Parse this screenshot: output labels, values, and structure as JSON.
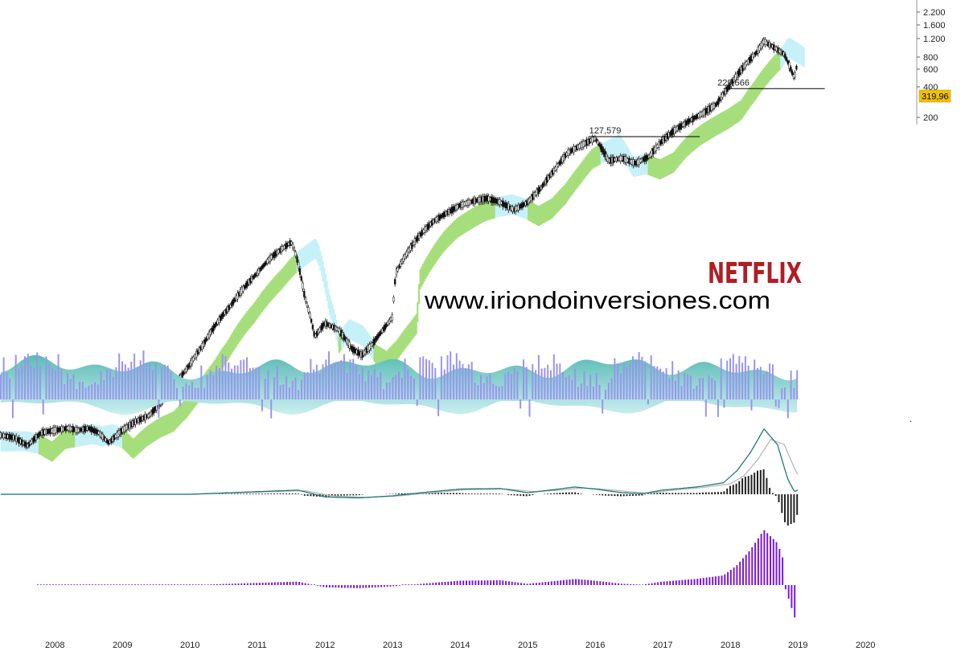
{
  "chart_data": {
    "type": "line",
    "title": "",
    "panels": [
      {
        "name": "price",
        "scale": "log",
        "ylim": [
          150,
          2600
        ],
        "yticks": [
          "2.200",
          "1.600",
          "1.200",
          "800",
          "600",
          "400",
          "200"
        ],
        "ytick_values": [
          2200,
          1600,
          1200,
          800,
          600,
          400,
          200
        ]
      },
      {
        "name": "oscillator-1"
      },
      {
        "name": "macd"
      },
      {
        "name": "histogram"
      }
    ],
    "x_labels": [
      "2008",
      "2009",
      "2010",
      "2011",
      "2012",
      "2013",
      "2014",
      "2015",
      "2016",
      "2017",
      "2018",
      "2019",
      "2020"
    ],
    "x_values": [
      2008,
      2009,
      2010,
      2011,
      2012,
      2013,
      2014,
      2015,
      2016,
      2017,
      2018,
      2019,
      2020
    ],
    "xlim": [
      2007.2,
      2020.4
    ],
    "price_series": {
      "x": [
        2007.2,
        2007.4,
        2007.6,
        2007.8,
        2008.0,
        2008.2,
        2008.35,
        2008.5,
        2008.65,
        2008.8,
        2009.0,
        2009.2,
        2009.4,
        2009.6,
        2009.8,
        2010.0,
        2010.2,
        2010.4,
        2010.6,
        2010.8,
        2011.0,
        2011.2,
        2011.4,
        2011.5,
        2011.55,
        2011.7,
        2011.85,
        2012.0,
        2012.2,
        2012.4,
        2012.55,
        2012.7,
        2012.9,
        2013.0,
        2013.05,
        2013.2,
        2013.4,
        2013.6,
        2013.8,
        2014.0,
        2014.2,
        2014.4,
        2014.6,
        2014.8,
        2015.0,
        2015.2,
        2015.4,
        2015.6,
        2015.8,
        2016.0,
        2016.2,
        2016.4,
        2016.6,
        2016.8,
        2017.0,
        2017.2,
        2017.4,
        2017.6,
        2017.8,
        2018.0,
        2018.2,
        2018.4,
        2018.5,
        2018.6,
        2018.8,
        2018.95,
        2019.0
      ],
      "y": [
        3.3,
        3.2,
        2.9,
        3.4,
        3.5,
        3.6,
        3.5,
        3.6,
        3.4,
        3.0,
        3.5,
        3.9,
        4.2,
        5.0,
        6.2,
        7.8,
        10.0,
        13.0,
        16.0,
        20.0,
        24.0,
        29.0,
        33.0,
        35.0,
        32.0,
        18.0,
        11.0,
        13.0,
        12.0,
        9.5,
        8.8,
        10.0,
        12.5,
        14.0,
        24.0,
        30.0,
        38.0,
        45.0,
        50.0,
        55.0,
        58.0,
        60.0,
        57.0,
        52.0,
        57.0,
        68.0,
        85.0,
        105.0,
        115.0,
        125.0,
        95.0,
        98.0,
        92.0,
        100.0,
        122.0,
        140.0,
        155.0,
        170.0,
        190.0,
        240.0,
        300.0,
        360.0,
        410.0,
        390.0,
        350.0,
        260.0,
        319.96
      ]
    },
    "last_price": "319,96",
    "annotations": [
      {
        "text": "229,566",
        "x": 2018.05,
        "y": 229.566
      },
      {
        "text": "127,579",
        "x": 2016.15,
        "y": 127.579
      }
    ],
    "support_lines": [
      {
        "y": 229.566,
        "x_start": 2017.9,
        "x_end": 2019.4
      },
      {
        "y": 127.579,
        "x_start": 2015.9,
        "x_end": 2017.55
      }
    ],
    "macd_series": {
      "x": [
        2007.2,
        2010.0,
        2011.0,
        2011.6,
        2012.0,
        2012.5,
        2013.0,
        2013.5,
        2014.0,
        2014.6,
        2015.0,
        2015.4,
        2015.7,
        2016.0,
        2016.4,
        2016.7,
        2017.0,
        2017.5,
        2017.9,
        2018.1,
        2018.3,
        2018.5,
        2018.7,
        2018.85,
        2018.95,
        2019.0
      ],
      "y": [
        0,
        0,
        5,
        8,
        -5,
        -7,
        -3,
        4,
        10,
        11,
        3,
        9,
        14,
        10,
        3,
        1,
        8,
        14,
        22,
        45,
        80,
        125,
        95,
        30,
        5,
        8
      ]
    },
    "macd_signal": {
      "x": [
        2007.2,
        2010.0,
        2011.0,
        2011.7,
        2012.1,
        2012.6,
        2013.1,
        2013.6,
        2014.1,
        2014.7,
        2015.1,
        2015.5,
        2015.8,
        2016.1,
        2016.5,
        2016.8,
        2017.1,
        2017.6,
        2018.0,
        2018.2,
        2018.4,
        2018.6,
        2018.8,
        2018.95,
        2019.0
      ],
      "y": [
        0,
        0,
        4,
        7,
        -3,
        -6,
        -3,
        3,
        9,
        10,
        5,
        8,
        12,
        10,
        5,
        2,
        7,
        13,
        20,
        35,
        65,
        105,
        95,
        50,
        38
      ]
    }
  }
}
